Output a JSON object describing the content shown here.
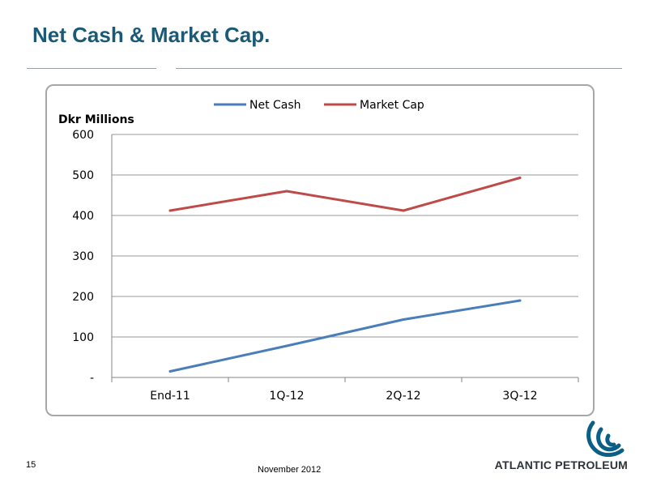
{
  "slide": {
    "title": "Net Cash & Market Cap.",
    "page_number": "15",
    "footer_date": "November 2012",
    "logo_text": "ATLANTIC PETROLEUM",
    "colors": {
      "title": "#1a5a76",
      "logo": "#0b5f86"
    }
  },
  "chart_data": {
    "type": "line",
    "ylabel": "Dkr Millions",
    "categories": [
      "End-11",
      "1Q-12",
      "2Q-12",
      "3Q-12"
    ],
    "series": [
      {
        "name": "Net Cash",
        "values": [
          15,
          78,
          143,
          190
        ],
        "color": "#4a7ebb"
      },
      {
        "name": "Market Cap",
        "values": [
          412,
          460,
          412,
          493
        ],
        "color": "#be4b48"
      }
    ],
    "ylim": [
      0,
      600
    ],
    "yticks": [
      0,
      100,
      200,
      300,
      400,
      500,
      600
    ],
    "ytick_labels": [
      "-",
      "100",
      "200",
      "300",
      "400",
      "500",
      "600"
    ],
    "grid": true,
    "legend": "top"
  }
}
